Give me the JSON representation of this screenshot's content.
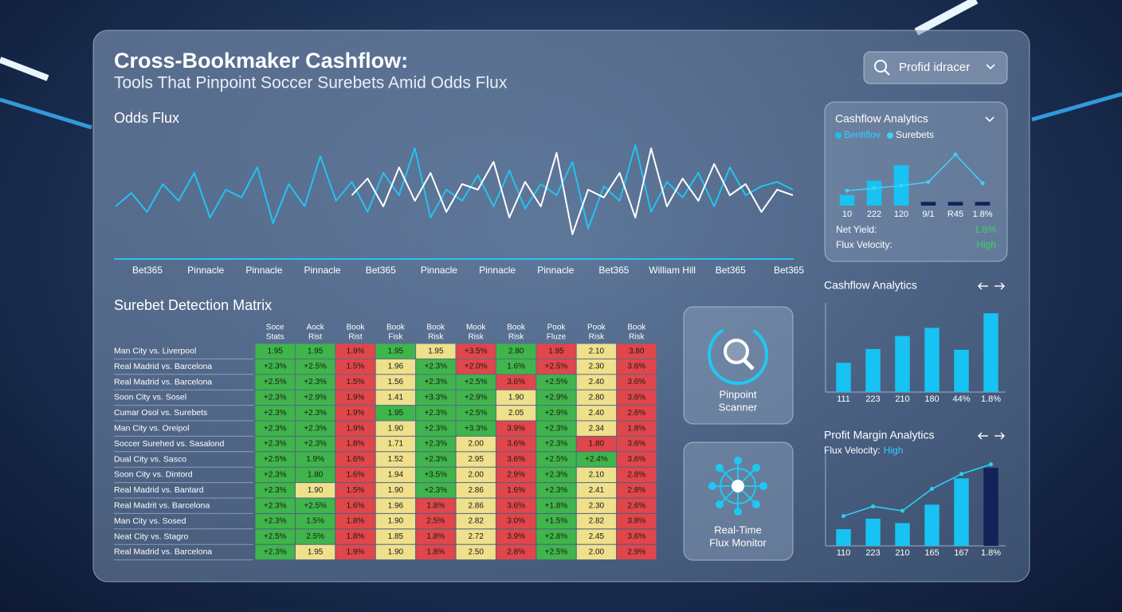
{
  "header": {
    "title": "Cross-Bookmaker Cashflow:",
    "subtitle": "Tools That Pinpoint Soccer Surebets Amid Odds Flux",
    "dropdown": "Profid idracer"
  },
  "odds_flux": {
    "type": "line",
    "title": "Odds Flux",
    "categories": [
      "Bet365",
      "Pinnacle",
      "Pinnacle",
      "Pinnacle",
      "Bet365",
      "Pinnacle",
      "Pinnacle",
      "Pinnacle",
      "Bet365",
      "William Hill",
      "Bet365",
      "Bet365"
    ],
    "ylim": [
      0,
      100
    ],
    "series": [
      {
        "color": "#22c3f0",
        "values": [
          40,
          52,
          35,
          60,
          45,
          70,
          30,
          55,
          48,
          75,
          25,
          60,
          40,
          85,
          45,
          62,
          35,
          70,
          50,
          92,
          30,
          55,
          45,
          68,
          40,
          72,
          38,
          60,
          50,
          80,
          20,
          58,
          45,
          95,
          35,
          62,
          48,
          70,
          40,
          75,
          50,
          58,
          62,
          55
        ]
      },
      {
        "color": "#ffffff",
        "values": [
          null,
          null,
          null,
          null,
          null,
          null,
          null,
          null,
          null,
          null,
          null,
          null,
          null,
          null,
          null,
          50,
          65,
          40,
          75,
          45,
          70,
          35,
          60,
          55,
          80,
          30,
          62,
          40,
          88,
          15,
          55,
          48,
          70,
          30,
          92,
          40,
          65,
          45,
          78,
          50,
          60,
          35,
          55,
          50
        ]
      }
    ]
  },
  "matrix": {
    "title": "Surebet Detection Matrix",
    "palette": {
      "g": "#3fb54b",
      "y": "#efe08c",
      "r": "#e0464a"
    },
    "columns": [
      [
        "Soce",
        "Stats"
      ],
      [
        "Aock",
        "Rist"
      ],
      [
        "Book",
        "Rist"
      ],
      [
        "Book",
        "Fisk"
      ],
      [
        "Book",
        "Risk"
      ],
      [
        "Mook",
        "Risk"
      ],
      [
        "Book",
        "Risk"
      ],
      [
        "Pook",
        "Fluze"
      ],
      [
        "Pook",
        "Risk"
      ],
      [
        "Book",
        "Risk"
      ]
    ],
    "rows": [
      {
        "match": "Man City vs. Liverpool",
        "cells": [
          "1.95",
          "1.95",
          "1.9%",
          "1.95",
          "1.95",
          "+3.5%",
          "2.80",
          "1.95",
          "2.10",
          "3.80"
        ],
        "colors": "ggrgyrgryr"
      },
      {
        "match": "Real Madrid vs. Barcelona",
        "cells": [
          "+2.3%",
          "+2.5%",
          "1.5%",
          "1.96",
          "+2.3%",
          "+2.0%",
          "1.6%",
          "+2.5%",
          "2.30",
          "3.6%"
        ],
        "colors": "ggrygrgryr"
      },
      {
        "match": "Real Madrid vs. Barcelona",
        "cells": [
          "+2.5%",
          "+2.3%",
          "1.5%",
          "1.56",
          "+2.3%",
          "+2.5%",
          "3.6%",
          "+2.5%",
          "2.40",
          "3.6%"
        ],
        "colors": "ggryggrgyr"
      },
      {
        "match": "Soon City vs. Sosel",
        "cells": [
          "+2.3%",
          "+2.9%",
          "1.9%",
          "1.41",
          "+3.3%",
          "+2.9%",
          "1.90",
          "+2.9%",
          "2.80",
          "3.6%"
        ],
        "colors": "ggryggygyr"
      },
      {
        "match": "Cumar Osol vs. Surebets",
        "cells": [
          "+2.3%",
          "+2.3%",
          "1.9%",
          "1.95",
          "+2.3%",
          "+2.5%",
          "2.05",
          "+2.9%",
          "2.40",
          "2.6%"
        ],
        "colors": "ggrgggygyr"
      },
      {
        "match": "Man City vs. Oreipol",
        "cells": [
          "+2.3%",
          "+2.3%",
          "1.9%",
          "1.90",
          "+2.3%",
          "+3.3%",
          "3.9%",
          "+2.3%",
          "2.34",
          "1.8%"
        ],
        "colors": "ggryggrgyr"
      },
      {
        "match": "Soccer Surehed vs. Sasalond",
        "cells": [
          "+2.3%",
          "+2.3%",
          "1.8%",
          "1.71",
          "+2.3%",
          "2.00",
          "3.6%",
          "+2.3%",
          "1.80",
          "3.6%"
        ],
        "colors": "ggrygyrgrr"
      },
      {
        "match": "Dual City vs. Sasco",
        "cells": [
          "+2.5%",
          "1.9%",
          "1.6%",
          "1.52",
          "+2.3%",
          "2.95",
          "3.6%",
          "+2.5%",
          "+2.4%",
          "3.6%"
        ],
        "colors": "ggrygyrggr"
      },
      {
        "match": "Soon City vs. Dintord",
        "cells": [
          "+2.3%",
          "1.80",
          "1.6%",
          "1.94",
          "+3.5%",
          "2.00",
          "2.9%",
          "+2.3%",
          "2.10",
          "2.8%"
        ],
        "colors": "ggrygyrgyr"
      },
      {
        "match": "Real Madrid vs. Bantard",
        "cells": [
          "+2.3%",
          "1.90",
          "1.5%",
          "1.90",
          "+2.3%",
          "2.86",
          "1.6%",
          "+2.3%",
          "2.41",
          "2.8%"
        ],
        "colors": "gyrygyrgyr"
      },
      {
        "match": "Real Madrit vs. Barcelona",
        "cells": [
          "+2.3%",
          "+2.5%",
          "1.6%",
          "1.96",
          "1.8%",
          "2.86",
          "3.6%",
          "+1.8%",
          "2.30",
          "2.6%"
        ],
        "colors": "ggryryrgyr"
      },
      {
        "match": "Man City vs. Sosed",
        "cells": [
          "+2.3%",
          "1.5%",
          "1.8%",
          "1.90",
          "2.5%",
          "2.82",
          "3.0%",
          "+1.5%",
          "2.82",
          "3.8%"
        ],
        "colors": "ggryryrgyr"
      },
      {
        "match": "Neat City vs. Stagro",
        "cells": [
          "+2.5%",
          "2.5%",
          "1.8%",
          "1.85",
          "1.8%",
          "2.72",
          "3.9%",
          "+2.8%",
          "2.45",
          "3.6%"
        ],
        "colors": "ggryryrgyr"
      },
      {
        "match": "Real Madrid vs. Barcelona",
        "cells": [
          "+2.3%",
          "1.95",
          "1.9%",
          "1.90",
          "1.8%",
          "2.50",
          "2.8%",
          "+2.5%",
          "2.00",
          "2.9%"
        ],
        "colors": "gyryryrgyr"
      }
    ]
  },
  "tools": [
    {
      "label": [
        "Pinpoint",
        "Scanner"
      ]
    },
    {
      "label": [
        "Real-Time",
        "Flux Monitor"
      ]
    }
  ],
  "panels": [
    {
      "type": "bar",
      "title": "Cashflow Analytics",
      "ylim": [
        0,
        100
      ],
      "categories": [
        "10",
        "222",
        "120",
        "9/1",
        "R45",
        "1.8%"
      ],
      "series": [
        {
          "name": "Bentiflov",
          "colors": [
            "#18c2f2",
            "#18c2f2",
            "#18c2f2",
            "#13235a",
            "#13235a",
            "#13235a"
          ],
          "values": [
            17,
            40,
            65,
            6,
            6,
            6
          ]
        },
        {
          "name": "Surebets",
          "color": "#3fd0f5",
          "values": [
            24,
            28,
            32,
            38,
            82,
            36
          ]
        }
      ],
      "stats": [
        {
          "label": "Net Yield:",
          "value": "1.8%"
        },
        {
          "label": "Flux Velocity:",
          "value": "High"
        }
      ]
    },
    {
      "type": "bar",
      "title": "Cashflow Analytics",
      "ylim": [
        0,
        100
      ],
      "categories": [
        "111",
        "223",
        "210",
        "180",
        "44%",
        "1.8%"
      ],
      "series": [
        {
          "colors": [
            "#18c2f2",
            "#18c2f2",
            "#18c2f2",
            "#18c2f2",
            "#18c2f2",
            "#18c2f2"
          ],
          "values": [
            36,
            53,
            69,
            79,
            52,
            97
          ]
        }
      ]
    },
    {
      "type": "bar",
      "title": "Profit Margin Analytics",
      "subtitle_label": "Flux Velocity:",
      "subtitle_value": "High",
      "ylim": [
        0,
        100
      ],
      "categories": [
        "110",
        "223",
        "210",
        "165",
        "167",
        "1.8%"
      ],
      "series": [
        {
          "colors": [
            "#18c2f2",
            "#18c2f2",
            "#18c2f2",
            "#18c2f2",
            "#18c2f2",
            "#13235a"
          ],
          "values": [
            19,
            31,
            26,
            47,
            77,
            89
          ]
        },
        {
          "color": "#2bd0f5",
          "values": [
            34,
            45,
            40,
            65,
            82,
            93
          ]
        }
      ]
    }
  ]
}
